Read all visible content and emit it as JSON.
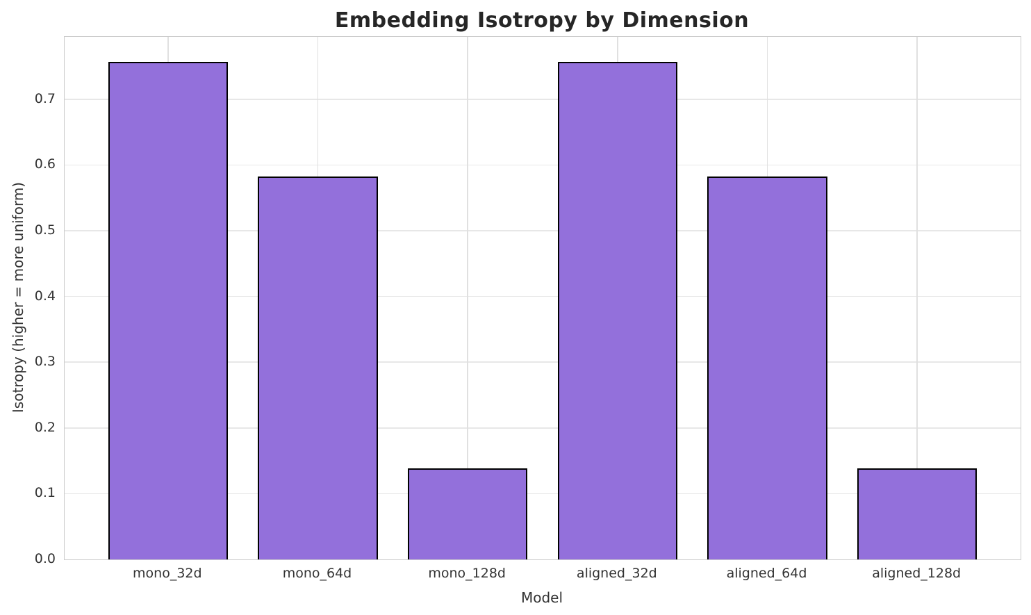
{
  "chart_data": {
    "type": "bar",
    "title": "Embedding Isotropy by Dimension",
    "xlabel": "Model",
    "ylabel": "Isotropy (higher = more uniform)",
    "categories": [
      "mono_32d",
      "mono_64d",
      "mono_128d",
      "aligned_32d",
      "aligned_64d",
      "aligned_128d"
    ],
    "values": [
      0.757,
      0.583,
      0.138,
      0.757,
      0.583,
      0.138
    ],
    "ylim": [
      0,
      0.795
    ],
    "yticks": [
      0.0,
      0.1,
      0.2,
      0.3,
      0.4,
      0.5,
      0.6,
      0.7
    ],
    "ytick_labels": [
      "0.0",
      "0.1",
      "0.2",
      "0.3",
      "0.4",
      "0.5",
      "0.6",
      "0.7"
    ],
    "bar_width_fraction": 0.8,
    "x_margin_fraction": 0.05,
    "grid": true,
    "legend": null,
    "bar_color": "#9370DB",
    "bar_edge_color": "#000000",
    "grid_color": "#e7e7e7",
    "spine_color": "#cccccc",
    "title_color": "#262626",
    "text_color": "#333333",
    "background_color": "#ffffff"
  }
}
